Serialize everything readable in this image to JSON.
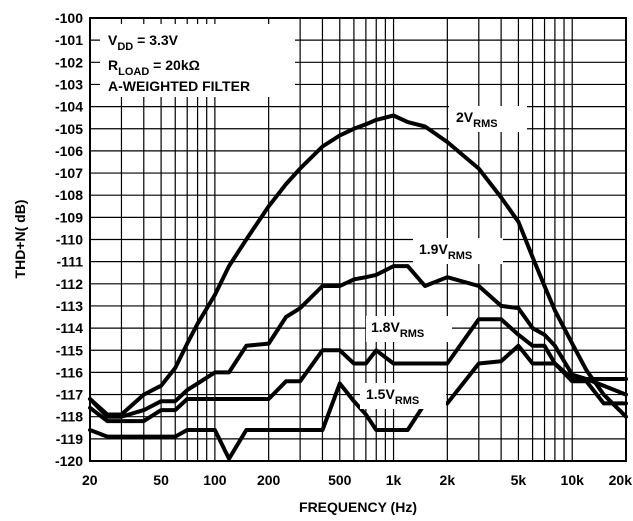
{
  "chart_data": {
    "type": "line",
    "title": "",
    "xlabel": "FREQUENCY (Hz)",
    "ylabel": "THD+N( dB)",
    "x_scale": "log",
    "xlim": [
      20,
      20000
    ],
    "ylim": [
      -120,
      -100
    ],
    "grid": true,
    "x_ticks": [
      20,
      50,
      100,
      200,
      500,
      1000,
      2000,
      5000,
      10000,
      20000
    ],
    "x_tick_labels": [
      "20",
      "50",
      "100",
      "200",
      "500",
      "1k",
      "2k",
      "5k",
      "10k",
      "20k"
    ],
    "y_ticks": [
      -100,
      -101,
      -102,
      -103,
      -104,
      -105,
      -106,
      -107,
      -108,
      -109,
      -110,
      -111,
      -112,
      -113,
      -114,
      -115,
      -116,
      -117,
      -118,
      -119,
      -120
    ],
    "y_tick_labels": [
      "-100",
      "-101",
      "-102",
      "-103",
      "-104",
      "-105",
      "-106",
      "-107",
      "-108",
      "-109",
      "-110",
      "-111",
      "-112",
      "-113",
      "-114",
      "-115",
      "-116",
      "-117",
      "-118",
      "-119",
      "-120"
    ],
    "annotations": {
      "vdd_main": "V",
      "vdd_sub": "DD",
      "vdd_rest": " = 3.3V",
      "rload_main": "R",
      "rload_sub": "LOAD",
      "rload_rest": " = 20kΩ",
      "filter": "A-WEIGHTED FILTER"
    },
    "series": [
      {
        "label_main": "2V",
        "label_sub": "RMS",
        "x": [
          20,
          25,
          30,
          40,
          50,
          60,
          70,
          80,
          100,
          120,
          150,
          200,
          250,
          300,
          400,
          500,
          600,
          700,
          800,
          1000,
          1200,
          1500,
          2000,
          3000,
          4000,
          5000,
          6000,
          7000,
          8000,
          10000,
          12000,
          15000,
          20000
        ],
        "y": [
          -117.2,
          -117.9,
          -117.9,
          -117.0,
          -116.6,
          -115.8,
          -114.7,
          -113.8,
          -112.5,
          -111.2,
          -110.0,
          -108.5,
          -107.5,
          -106.8,
          -105.8,
          -105.3,
          -105.0,
          -104.8,
          -104.6,
          -104.4,
          -104.7,
          -104.9,
          -105.6,
          -106.8,
          -108.1,
          -109.2,
          -110.8,
          -112.1,
          -113.2,
          -114.7,
          -115.9,
          -117.0,
          -118.0
        ]
      },
      {
        "label_main": "1.9V",
        "label_sub": "RMS",
        "x": [
          20,
          25,
          30,
          40,
          50,
          60,
          70,
          80,
          100,
          120,
          150,
          200,
          250,
          300,
          400,
          500,
          600,
          700,
          800,
          1000,
          1200,
          1500,
          2000,
          3000,
          4000,
          5000,
          6000,
          7000,
          8000,
          10000,
          12000,
          15000,
          20000
        ],
        "y": [
          -117.2,
          -118.0,
          -118.0,
          -117.7,
          -117.3,
          -117.3,
          -116.8,
          -116.5,
          -116.0,
          -116.0,
          -114.8,
          -114.7,
          -113.5,
          -113.1,
          -112.1,
          -112.1,
          -111.8,
          -111.7,
          -111.6,
          -111.2,
          -111.2,
          -112.1,
          -111.7,
          -112.1,
          -113.0,
          -113.1,
          -114.0,
          -114.3,
          -114.8,
          -116.1,
          -116.3,
          -116.6,
          -117.0
        ]
      },
      {
        "label_main": "1.8V",
        "label_sub": "RMS",
        "x": [
          20,
          25,
          30,
          40,
          50,
          60,
          70,
          80,
          100,
          120,
          150,
          200,
          250,
          300,
          400,
          500,
          600,
          700,
          800,
          1000,
          1200,
          1500,
          2000,
          3000,
          4000,
          5000,
          6000,
          7000,
          8000,
          10000,
          12000,
          15000,
          20000
        ],
        "y": [
          -117.6,
          -118.2,
          -118.2,
          -118.2,
          -117.7,
          -117.7,
          -117.2,
          -117.2,
          -117.2,
          -117.2,
          -117.2,
          -117.2,
          -116.4,
          -116.4,
          -115.0,
          -115.0,
          -115.6,
          -115.6,
          -115.0,
          -115.6,
          -115.6,
          -115.6,
          -115.6,
          -113.6,
          -113.6,
          -114.3,
          -114.8,
          -114.8,
          -115.6,
          -116.4,
          -116.4,
          -117.4,
          -117.4
        ]
      },
      {
        "label_main": "1.5V",
        "label_sub": "RMS",
        "x": [
          20,
          25,
          30,
          40,
          50,
          60,
          70,
          80,
          100,
          120,
          150,
          200,
          250,
          300,
          400,
          500,
          600,
          700,
          800,
          1000,
          1200,
          1500,
          2000,
          3000,
          4000,
          5000,
          6000,
          7000,
          8000,
          10000,
          12000,
          15000,
          20000
        ],
        "y": [
          -118.6,
          -118.9,
          -118.9,
          -118.9,
          -118.9,
          -118.9,
          -118.6,
          -118.6,
          -118.6,
          -119.9,
          -118.6,
          -118.6,
          -118.6,
          -118.6,
          -118.6,
          -116.5,
          -117.3,
          -117.9,
          -118.6,
          -118.6,
          -118.6,
          -117.4,
          -117.4,
          -115.6,
          -115.5,
          -114.8,
          -115.6,
          -115.6,
          -115.6,
          -116.3,
          -116.3,
          -116.3,
          -116.3
        ]
      }
    ]
  }
}
